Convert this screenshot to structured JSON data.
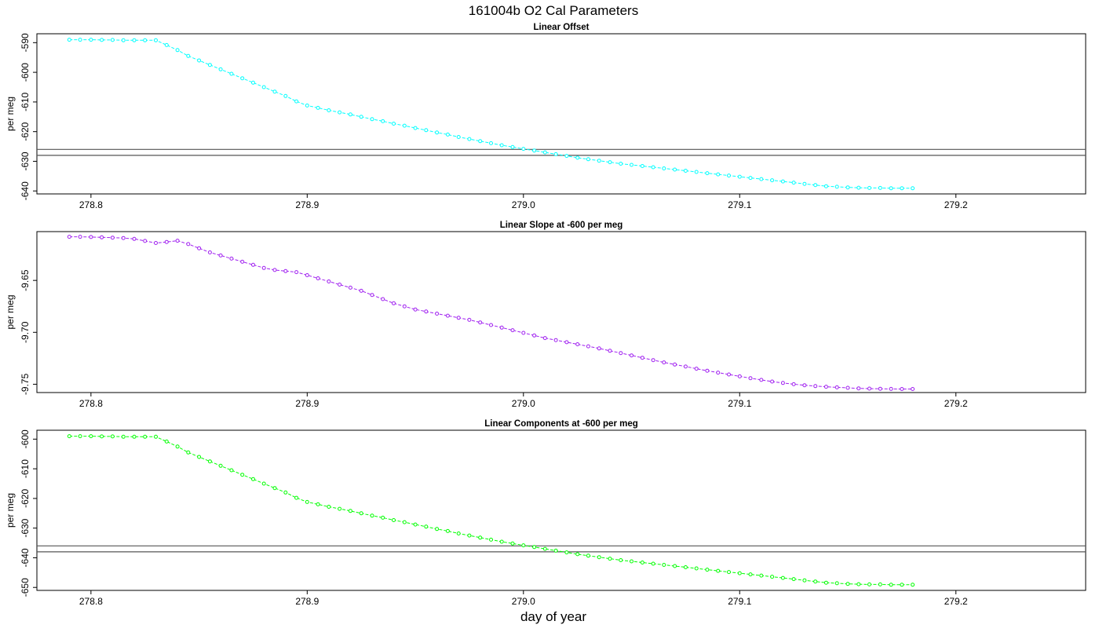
{
  "page": {
    "title": "161004b   O2 Cal Parameters",
    "xlabel": "day of year"
  },
  "chart_data": [
    {
      "type": "line",
      "title": "Linear Offset",
      "ylabel": "per meg",
      "xlim": [
        278.775,
        279.26
      ],
      "ylim": [
        -641,
        -587
      ],
      "x_ticks": [
        278.8,
        278.9,
        279.0,
        279.1,
        279.2
      ],
      "x_tick_labels": [
        "278.8",
        "278.9",
        "279.0",
        "279.1",
        "279.2"
      ],
      "y_ticks": [
        -590,
        -600,
        -610,
        -620,
        -630,
        -640
      ],
      "y_tick_labels": [
        "-590",
        "-600",
        "-610",
        "-620",
        "-630",
        "-640"
      ],
      "hlines": [
        -626,
        -628
      ],
      "grid": false,
      "series": [
        {
          "color": "#00ffff",
          "x_start": 278.79,
          "x_step": 0.005,
          "values": [
            -589.0,
            -589.0,
            -589.0,
            -589.1,
            -589.1,
            -589.2,
            -589.2,
            -589.2,
            -589.2,
            -590.8,
            -592.5,
            -594.5,
            -596.0,
            -597.5,
            -599.0,
            -600.5,
            -602.0,
            -603.5,
            -605.0,
            -606.5,
            -608.0,
            -609.8,
            -611.2,
            -612.0,
            -612.8,
            -613.5,
            -614.2,
            -615.0,
            -615.8,
            -616.5,
            -617.3,
            -618.0,
            -618.8,
            -619.5,
            -620.3,
            -621.0,
            -621.8,
            -622.5,
            -623.2,
            -623.9,
            -624.6,
            -625.2,
            -625.8,
            -626.4,
            -627.0,
            -627.6,
            -628.2,
            -628.8,
            -629.3,
            -629.8,
            -630.3,
            -630.8,
            -631.2,
            -631.6,
            -632.0,
            -632.4,
            -632.8,
            -633.2,
            -633.6,
            -634.0,
            -634.4,
            -634.8,
            -635.2,
            -635.6,
            -636.0,
            -636.4,
            -636.8,
            -637.2,
            -637.6,
            -638.0,
            -638.4,
            -638.6,
            -638.8,
            -638.9,
            -639.0,
            -639.0,
            -639.1,
            -639.1,
            -639.1
          ]
        }
      ]
    },
    {
      "type": "line",
      "title": "Linear Slope at -600 per meg",
      "ylabel": "per meg",
      "xlim": [
        278.775,
        279.26
      ],
      "ylim": [
        -9.758,
        -9.603
      ],
      "x_ticks": [
        278.8,
        278.9,
        279.0,
        279.1,
        279.2
      ],
      "x_tick_labels": [
        "278.8",
        "278.9",
        "279.0",
        "279.1",
        "279.2"
      ],
      "y_ticks": [
        -9.65,
        -9.7,
        -9.75
      ],
      "y_tick_labels": [
        "-9.65",
        "-9.70",
        "-9.75"
      ],
      "hlines": [],
      "grid": false,
      "series": [
        {
          "color": "#a020f0",
          "x_start": 278.79,
          "x_step": 0.005,
          "values": [
            -9.608,
            -9.608,
            -9.6082,
            -9.6085,
            -9.6088,
            -9.6092,
            -9.61,
            -9.612,
            -9.614,
            -9.613,
            -9.6118,
            -9.615,
            -9.619,
            -9.623,
            -9.626,
            -9.629,
            -9.632,
            -9.635,
            -9.638,
            -9.64,
            -9.641,
            -9.642,
            -9.645,
            -9.648,
            -9.651,
            -9.654,
            -9.657,
            -9.66,
            -9.664,
            -9.668,
            -9.672,
            -9.675,
            -9.678,
            -9.68,
            -9.682,
            -9.684,
            -9.686,
            -9.688,
            -9.6905,
            -9.693,
            -9.6955,
            -9.698,
            -9.7005,
            -9.703,
            -9.7055,
            -9.7075,
            -9.7095,
            -9.7115,
            -9.7135,
            -9.7155,
            -9.7178,
            -9.72,
            -9.7222,
            -9.7245,
            -9.7268,
            -9.729,
            -9.731,
            -9.733,
            -9.735,
            -9.737,
            -9.7388,
            -9.7406,
            -9.7424,
            -9.7442,
            -9.7458,
            -9.7474,
            -9.7488,
            -9.75,
            -9.751,
            -9.7518,
            -9.7524,
            -9.753,
            -9.7535,
            -9.754,
            -9.7542,
            -9.7544,
            -9.7545,
            -9.7546,
            -9.7546
          ]
        }
      ]
    },
    {
      "type": "line",
      "title": "Linear Components at -600 per meg",
      "ylabel": "per meg",
      "xlim": [
        278.775,
        279.26
      ],
      "ylim": [
        -651,
        -597
      ],
      "x_ticks": [
        278.8,
        278.9,
        279.0,
        279.1,
        279.2
      ],
      "x_tick_labels": [
        "278.8",
        "278.9",
        "279.0",
        "279.1",
        "279.2"
      ],
      "y_ticks": [
        -600,
        -610,
        -620,
        -630,
        -640,
        -650
      ],
      "y_tick_labels": [
        "-600",
        "-610",
        "-620",
        "-630",
        "-640",
        "-650"
      ],
      "hlines": [
        -636,
        -638
      ],
      "grid": false,
      "series": [
        {
          "color": "#00ff00",
          "x_start": 278.79,
          "x_step": 0.005,
          "values": [
            -599.0,
            -599.0,
            -599.0,
            -599.1,
            -599.1,
            -599.2,
            -599.2,
            -599.2,
            -599.2,
            -600.8,
            -602.5,
            -604.5,
            -606.0,
            -607.5,
            -609.0,
            -610.5,
            -612.0,
            -613.5,
            -615.0,
            -616.5,
            -618.0,
            -619.8,
            -621.2,
            -622.0,
            -622.8,
            -623.5,
            -624.2,
            -625.0,
            -625.8,
            -626.5,
            -627.3,
            -628.0,
            -628.8,
            -629.5,
            -630.3,
            -631.0,
            -631.8,
            -632.5,
            -633.2,
            -633.9,
            -634.6,
            -635.2,
            -635.8,
            -636.4,
            -637.0,
            -637.6,
            -638.2,
            -638.8,
            -639.3,
            -639.8,
            -640.3,
            -640.8,
            -641.2,
            -641.6,
            -642.0,
            -642.4,
            -642.8,
            -643.2,
            -643.6,
            -644.0,
            -644.4,
            -644.8,
            -645.2,
            -645.6,
            -646.0,
            -646.4,
            -646.8,
            -647.2,
            -647.6,
            -648.0,
            -648.4,
            -648.6,
            -648.8,
            -648.9,
            -649.0,
            -649.0,
            -649.1,
            -649.1,
            -649.1
          ]
        }
      ]
    }
  ]
}
